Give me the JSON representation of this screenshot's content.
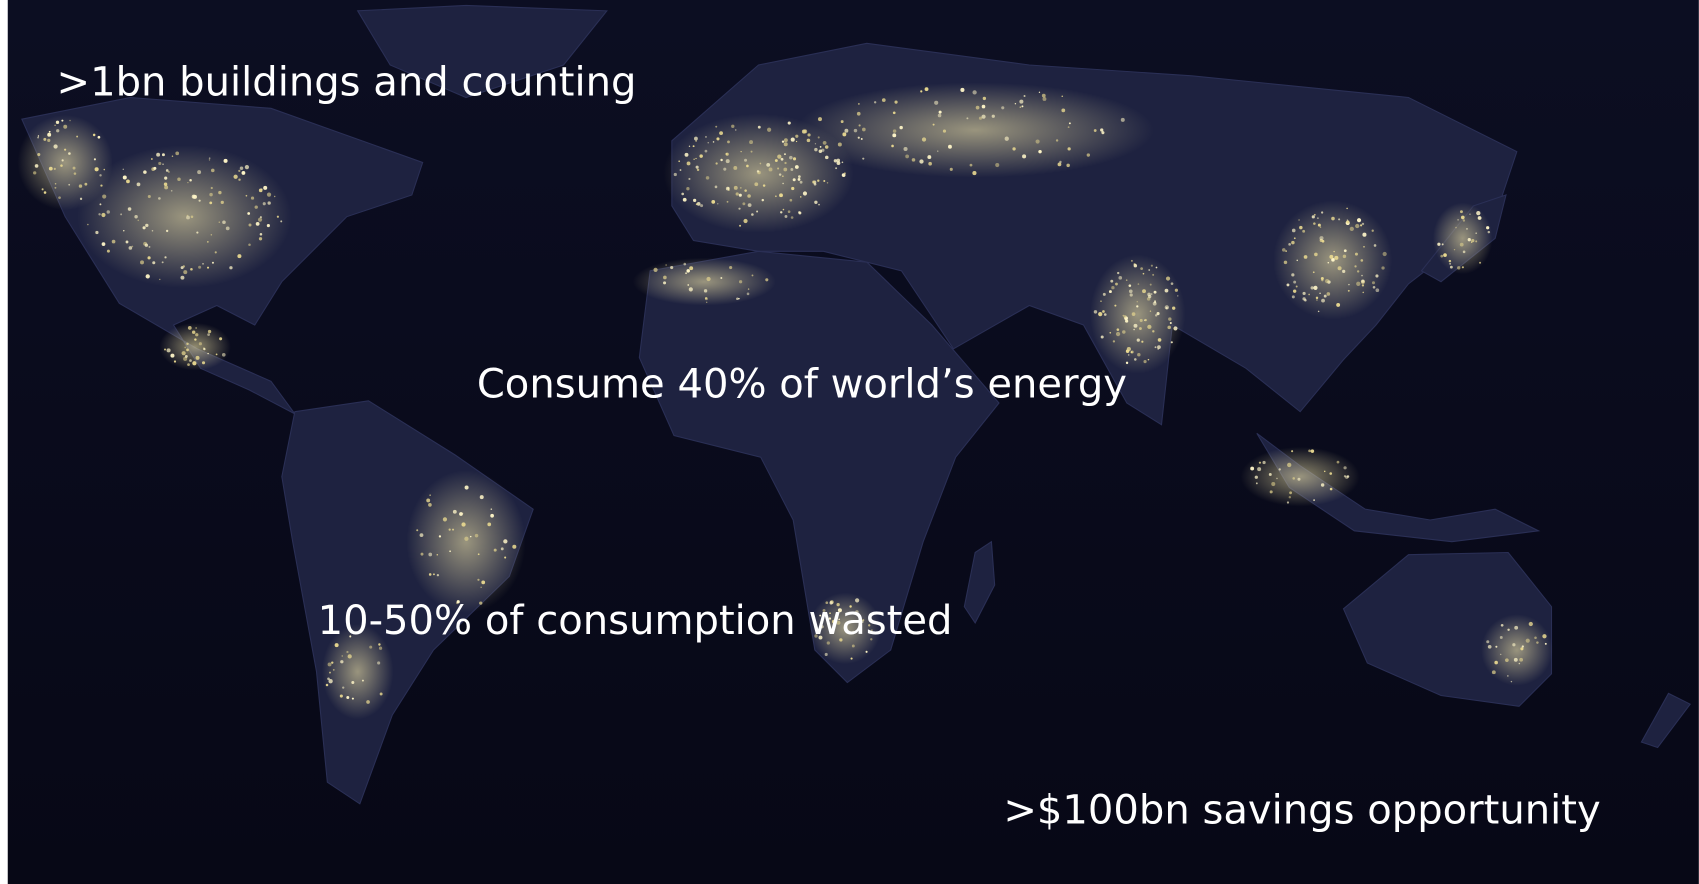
{
  "slide": {
    "statements": [
      ">1bn buildings and counting",
      "Consume 40% of world’s energy",
      "10-50% of consumption wasted",
      ">$100bn savings opportunity"
    ]
  }
}
